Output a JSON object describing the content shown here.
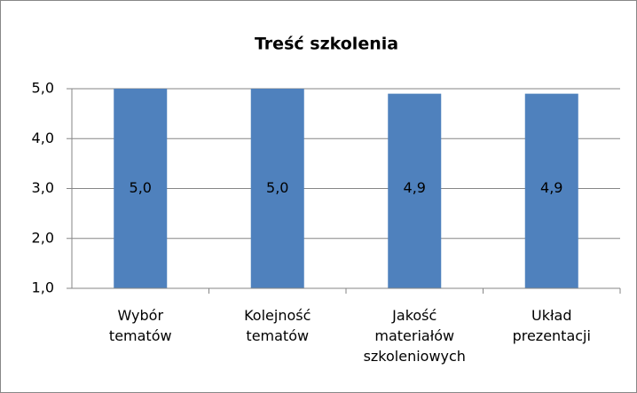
{
  "chart_data": {
    "type": "bar",
    "title": "Treść szkolenia",
    "categories": [
      "Wybór tematów",
      "Kolejność tematów",
      "Jakość materiałów szkoleniowych",
      "Układ prezentacji"
    ],
    "values": [
      5.0,
      5.0,
      4.9,
      4.9
    ],
    "value_labels": [
      "5,0",
      "5,0",
      "4,9",
      "4,9"
    ],
    "color": "#4f81bd",
    "ylim": [
      1,
      5
    ],
    "yticks": [
      {
        "value": 1,
        "label": "1,0"
      },
      {
        "value": 2,
        "label": "2,0"
      },
      {
        "value": 3,
        "label": "3,0"
      },
      {
        "value": 4,
        "label": "4,0"
      },
      {
        "value": 5,
        "label": "5,0"
      }
    ],
    "grid": true
  }
}
